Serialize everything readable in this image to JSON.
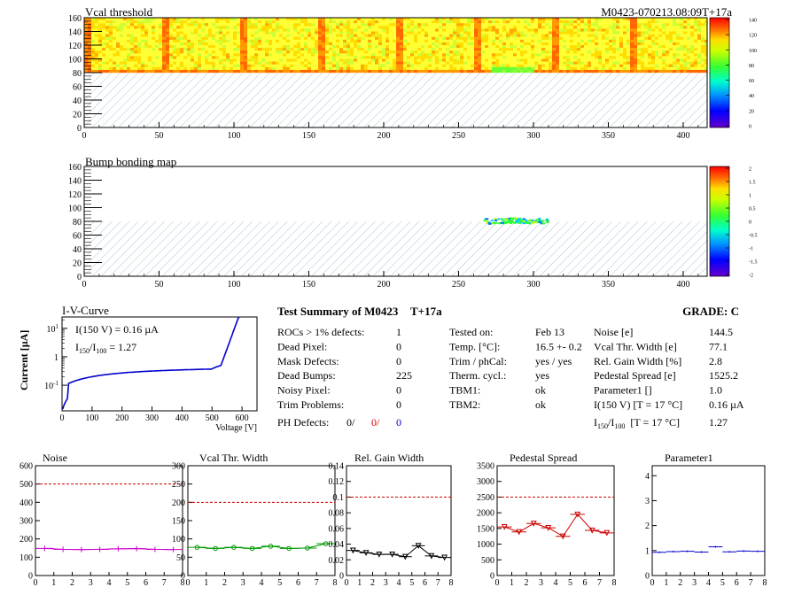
{
  "module_id": "M0423-070213.08:09T+17a",
  "map1": {
    "title": "Vcal threshold",
    "x_ticks": [
      "0",
      "50",
      "100",
      "150",
      "200",
      "250",
      "300",
      "350",
      "400"
    ],
    "y_ticks": [
      "0",
      "20",
      "40",
      "60",
      "80",
      "100",
      "120",
      "140",
      "160"
    ],
    "palette_ticks": [
      "140",
      "120",
      "100",
      "80",
      "60",
      "40",
      "20",
      "0"
    ]
  },
  "map2": {
    "title": "Bump bonding map",
    "x_ticks": [
      "0",
      "50",
      "100",
      "150",
      "200",
      "250",
      "300",
      "350",
      "400"
    ],
    "y_ticks": [
      "0",
      "20",
      "40",
      "60",
      "80",
      "100",
      "120",
      "140",
      "160"
    ],
    "palette_ticks": [
      "2",
      "1.5",
      "1",
      "0.5",
      "0",
      "-0.5",
      "-1",
      "-1.5",
      "-2"
    ]
  },
  "iv": {
    "title": "I-V-Curve",
    "ylabel": "Current [µA]",
    "xlabel": "Voltage [V]",
    "line1": "I(150 V) = 0.16 µA",
    "line2_pre": "I",
    "line2_sub1": "150",
    "line2_mid": "/I",
    "line2_sub2": "100",
    "line2_post": "=  1.27",
    "x_ticks": [
      "0",
      "100",
      "200",
      "300",
      "400",
      "500",
      "600"
    ],
    "y_ticks": [
      "10",
      "1",
      "10"
    ],
    "y_tick_exps": [
      "1",
      "",
      "-1"
    ]
  },
  "summary": {
    "title": "Test Summary of M0423",
    "tag": "T+17a",
    "grade_label": "GRADE:  C",
    "left_rows": [
      {
        "label": "ROCs > 1% defects:",
        "value": "1"
      },
      {
        "label": "Dead Pixel:",
        "value": "0"
      },
      {
        "label": "Mask Defects:",
        "value": "0"
      },
      {
        "label": "Dead Bumps:",
        "value": "225"
      },
      {
        "label": "Noisy Pixel:",
        "value": "0"
      },
      {
        "label": "Trim Problems:",
        "value": "0"
      }
    ],
    "ph_label": "PH Defects:",
    "ph_values": [
      "0/",
      "0/",
      "0"
    ],
    "mid_rows": [
      {
        "label": "Tested on:",
        "value": "Feb 13"
      },
      {
        "label": "Temp. [°C]:",
        "value": "16.5 +- 0.2"
      },
      {
        "label": "Trim / phCal:",
        "value": "yes / yes"
      },
      {
        "label": "Therm. cycl.:",
        "value": "yes"
      },
      {
        "label": "TBM1:",
        "value": "ok"
      },
      {
        "label": "TBM2:",
        "value": "ok"
      }
    ],
    "right_rows": [
      {
        "label": "Noise [e]",
        "value": "144.5"
      },
      {
        "label": "Vcal Thr. Width [e]",
        "value": "77.1"
      },
      {
        "label": "Rel. Gain Width [%]",
        "value": "2.8"
      },
      {
        "label": "Pedestal Spread [e]",
        "value": "1525.2"
      },
      {
        "label": "Parameter1 []",
        "value": "1.0"
      },
      {
        "label": "I(150 V) [T = 17 °C]",
        "value": "0.16 µA"
      }
    ],
    "last_row": {
      "pre": "I",
      "sub1": "150",
      "mid": "/I",
      "sub2": "100",
      "post": "[T = 17 °C]",
      "value": "1.27"
    }
  },
  "chart_data": [
    {
      "type": "line",
      "title": "Noise",
      "x": [
        0.5,
        1.5,
        2.5,
        3.5,
        4.5,
        5.5,
        6.5,
        7.5
      ],
      "values": [
        148,
        143,
        142,
        143,
        146,
        147,
        143,
        142
      ],
      "xlim": [
        0,
        8
      ],
      "ylim": [
        0,
        600
      ],
      "x_ticks": [
        "0",
        "1",
        "2",
        "3",
        "4",
        "5",
        "6",
        "7",
        "8"
      ],
      "y_ticks": [
        "0",
        "100",
        "200",
        "300",
        "400",
        "500",
        "600"
      ],
      "limit": 500,
      "color": "#cc00cc",
      "marker": "plus"
    },
    {
      "type": "line",
      "title": "Vcal Thr. Width",
      "x": [
        0.5,
        1.5,
        2.5,
        3.5,
        4.5,
        5.5,
        6.5,
        7.5
      ],
      "values": [
        77,
        74,
        77,
        74,
        80,
        74,
        75,
        87
      ],
      "xlim": [
        0,
        8
      ],
      "ylim": [
        0,
        300
      ],
      "x_ticks": [
        "0",
        "1",
        "2",
        "3",
        "4",
        "5",
        "6",
        "7",
        "8"
      ],
      "y_ticks": [
        "0",
        "50",
        "100",
        "150",
        "200",
        "250",
        "300"
      ],
      "limit": 200,
      "color": "#009900",
      "marker": "circle"
    },
    {
      "type": "line",
      "title": "Rel. Gain Width",
      "x": [
        0.5,
        1.5,
        2.5,
        3.5,
        4.5,
        5.5,
        6.5,
        7.5
      ],
      "values": [
        0.032,
        0.029,
        0.027,
        0.027,
        0.024,
        0.038,
        0.025,
        0.023
      ],
      "xlim": [
        0,
        8
      ],
      "ylim": [
        0,
        0.14
      ],
      "x_ticks": [
        "0",
        "1",
        "2",
        "3",
        "4",
        "5",
        "6",
        "7",
        "8"
      ],
      "y_ticks": [
        "0",
        "0.02",
        "0.04",
        "0.06",
        "0.08",
        "0.1",
        "0.12",
        "0.14"
      ],
      "limit": 0.1,
      "color": "#000000",
      "marker": "tri"
    },
    {
      "type": "line",
      "title": "Pedestal Spread",
      "x": [
        0.5,
        1.5,
        2.5,
        3.5,
        4.5,
        5.5,
        6.5,
        7.5
      ],
      "values": [
        1550,
        1390,
        1660,
        1520,
        1250,
        1950,
        1440,
        1360
      ],
      "xlim": [
        0,
        8
      ],
      "ylim": [
        0,
        3500
      ],
      "x_ticks": [
        "0",
        "1",
        "2",
        "3",
        "4",
        "5",
        "6",
        "7",
        "8"
      ],
      "y_ticks": [
        "0",
        "500",
        "1000",
        "1500",
        "2000",
        "2500",
        "3000",
        "3500"
      ],
      "limit": 2500,
      "color": "#cc0000",
      "marker": "tri"
    },
    {
      "type": "line",
      "title": "Parameter1",
      "x": [
        0.5,
        1.5,
        2.5,
        3.5,
        4.5,
        5.5,
        6.5,
        7.5
      ],
      "values": [
        0.93,
        0.96,
        0.97,
        0.94,
        1.15,
        0.95,
        0.98,
        0.97
      ],
      "xlim": [
        0,
        8
      ],
      "ylim": [
        0,
        4.4
      ],
      "x_ticks": [
        "0",
        "1",
        "2",
        "3",
        "4",
        "5",
        "6",
        "7",
        "8"
      ],
      "y_ticks": [
        "0",
        "1",
        "2",
        "3",
        "4"
      ],
      "limit": null,
      "color": "#0000cc",
      "marker": "dash"
    }
  ]
}
